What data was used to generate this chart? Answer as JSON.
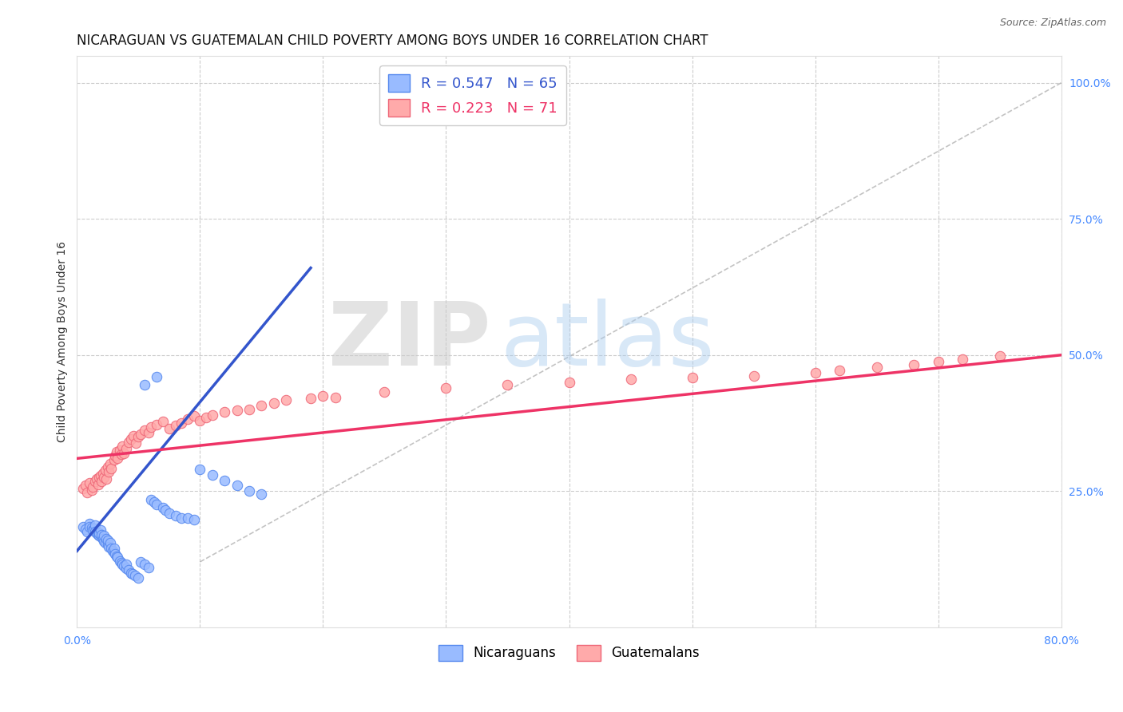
{
  "title": "NICARAGUAN VS GUATEMALAN CHILD POVERTY AMONG BOYS UNDER 16 CORRELATION CHART",
  "source": "Source: ZipAtlas.com",
  "ylabel": "Child Poverty Among Boys Under 16",
  "xlim": [
    0.0,
    0.8
  ],
  "ylim": [
    0.0,
    1.05
  ],
  "xtick_positions": [
    0.0,
    0.1,
    0.2,
    0.3,
    0.4,
    0.5,
    0.6,
    0.7,
    0.8
  ],
  "xticklabels": [
    "0.0%",
    "",
    "",
    "",
    "",
    "",
    "",
    "",
    "80.0%"
  ],
  "yticks_right": [
    0.25,
    0.5,
    0.75,
    1.0
  ],
  "ytick_right_labels": [
    "25.0%",
    "50.0%",
    "75.0%",
    "100.0%"
  ],
  "blue_color": "#99BBFF",
  "blue_edge": "#5588EE",
  "pink_color": "#FFAAAA",
  "pink_edge": "#EE6677",
  "blue_R": "0.547",
  "blue_N": "65",
  "pink_R": "0.223",
  "pink_N": "71",
  "legend_label_blue": "Nicaraguans",
  "legend_label_pink": "Guatemalans",
  "watermark_zip": "ZIP",
  "watermark_atlas": "atlas",
  "title_fontsize": 12,
  "label_fontsize": 10,
  "tick_fontsize": 10,
  "blue_trend_x": [
    0.0,
    0.19
  ],
  "blue_trend_y": [
    0.14,
    0.66
  ],
  "pink_trend_x": [
    0.0,
    0.8
  ],
  "pink_trend_y": [
    0.31,
    0.5
  ],
  "ref_line_x": [
    0.1,
    0.8
  ],
  "ref_line_y": [
    0.12,
    1.0
  ],
  "blue_scatter_x": [
    0.005,
    0.007,
    0.008,
    0.01,
    0.01,
    0.012,
    0.013,
    0.014,
    0.015,
    0.015,
    0.016,
    0.017,
    0.018,
    0.018,
    0.019,
    0.02,
    0.02,
    0.021,
    0.022,
    0.022,
    0.023,
    0.024,
    0.025,
    0.025,
    0.026,
    0.027,
    0.028,
    0.029,
    0.03,
    0.03,
    0.031,
    0.032,
    0.033,
    0.035,
    0.036,
    0.037,
    0.038,
    0.04,
    0.04,
    0.042,
    0.044,
    0.045,
    0.047,
    0.05,
    0.052,
    0.055,
    0.058,
    0.06,
    0.063,
    0.065,
    0.07,
    0.072,
    0.075,
    0.08,
    0.085,
    0.09,
    0.095,
    0.1,
    0.11,
    0.12,
    0.13,
    0.14,
    0.15,
    0.055,
    0.065
  ],
  "blue_scatter_y": [
    0.185,
    0.18,
    0.175,
    0.19,
    0.185,
    0.183,
    0.178,
    0.182,
    0.188,
    0.175,
    0.172,
    0.17,
    0.168,
    0.173,
    0.178,
    0.165,
    0.17,
    0.162,
    0.158,
    0.168,
    0.155,
    0.162,
    0.152,
    0.16,
    0.148,
    0.155,
    0.145,
    0.14,
    0.138,
    0.145,
    0.135,
    0.13,
    0.128,
    0.122,
    0.118,
    0.115,
    0.112,
    0.108,
    0.115,
    0.105,
    0.1,
    0.098,
    0.095,
    0.09,
    0.12,
    0.115,
    0.11,
    0.235,
    0.23,
    0.225,
    0.22,
    0.215,
    0.21,
    0.205,
    0.2,
    0.2,
    0.198,
    0.29,
    0.28,
    0.27,
    0.26,
    0.25,
    0.245,
    0.445,
    0.46
  ],
  "pink_scatter_x": [
    0.005,
    0.007,
    0.008,
    0.01,
    0.012,
    0.013,
    0.015,
    0.016,
    0.017,
    0.018,
    0.019,
    0.02,
    0.021,
    0.022,
    0.023,
    0.024,
    0.025,
    0.026,
    0.027,
    0.028,
    0.03,
    0.031,
    0.032,
    0.033,
    0.035,
    0.036,
    0.037,
    0.038,
    0.04,
    0.042,
    0.044,
    0.046,
    0.048,
    0.05,
    0.052,
    0.055,
    0.058,
    0.06,
    0.065,
    0.07,
    0.075,
    0.08,
    0.085,
    0.09,
    0.095,
    0.1,
    0.105,
    0.11,
    0.12,
    0.13,
    0.14,
    0.15,
    0.16,
    0.17,
    0.19,
    0.2,
    0.21,
    0.25,
    0.3,
    0.35,
    0.4,
    0.45,
    0.5,
    0.55,
    0.6,
    0.62,
    0.65,
    0.68,
    0.7,
    0.72,
    0.75
  ],
  "pink_scatter_y": [
    0.255,
    0.26,
    0.248,
    0.265,
    0.252,
    0.258,
    0.268,
    0.272,
    0.262,
    0.275,
    0.278,
    0.268,
    0.282,
    0.275,
    0.288,
    0.272,
    0.295,
    0.285,
    0.3,
    0.292,
    0.308,
    0.315,
    0.322,
    0.31,
    0.325,
    0.318,
    0.332,
    0.32,
    0.328,
    0.34,
    0.345,
    0.352,
    0.338,
    0.35,
    0.355,
    0.362,
    0.358,
    0.368,
    0.372,
    0.378,
    0.365,
    0.37,
    0.375,
    0.382,
    0.388,
    0.38,
    0.385,
    0.39,
    0.395,
    0.398,
    0.4,
    0.408,
    0.412,
    0.418,
    0.42,
    0.425,
    0.422,
    0.432,
    0.44,
    0.445,
    0.45,
    0.455,
    0.458,
    0.462,
    0.468,
    0.472,
    0.478,
    0.482,
    0.488,
    0.492,
    0.498
  ]
}
